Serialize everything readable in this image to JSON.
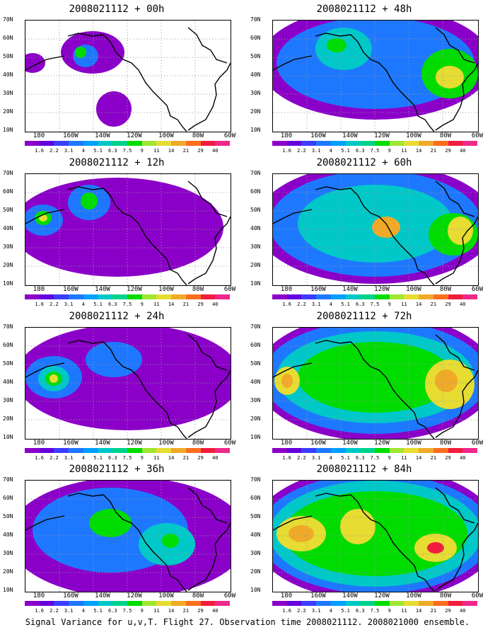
{
  "panels": [
    {
      "title": "2008021112 + 00h",
      "level": 0
    },
    {
      "title": "2008021112 + 48h",
      "level": 4
    },
    {
      "title": "2008021112 + 12h",
      "level": 1
    },
    {
      "title": "2008021112 + 60h",
      "level": 5
    },
    {
      "title": "2008021112 + 24h",
      "level": 2
    },
    {
      "title": "2008021112 + 72h",
      "level": 6
    },
    {
      "title": "2008021112 + 36h",
      "level": 3
    },
    {
      "title": "2008021112 + 84h",
      "level": 7
    }
  ],
  "lat_labels": [
    "70N",
    "60N",
    "50N",
    "40N",
    "30N",
    "20N",
    "10N"
  ],
  "lon_labels": [
    "180",
    "160W",
    "140W",
    "120W",
    "100W",
    "80W",
    "60W"
  ],
  "colorbar": {
    "labels": [
      "1.6",
      "2.2",
      "3.1",
      "4",
      "5.1",
      "6.3",
      "7.5",
      "9",
      "11",
      "14",
      "21",
      "29",
      "40"
    ],
    "colors": [
      "#8b00c8",
      "#6400dc",
      "#3c3cff",
      "#1e78ff",
      "#00a0ff",
      "#00c8c8",
      "#00d28c",
      "#00dc00",
      "#a0e632",
      "#e6dc32",
      "#f0aa28",
      "#fa6e1e",
      "#f01e3c",
      "#f0288c"
    ]
  },
  "caption": "Signal Variance for u,v,T. Flight 27. Observation time 2008021112. 2008021000 ensemble."
}
